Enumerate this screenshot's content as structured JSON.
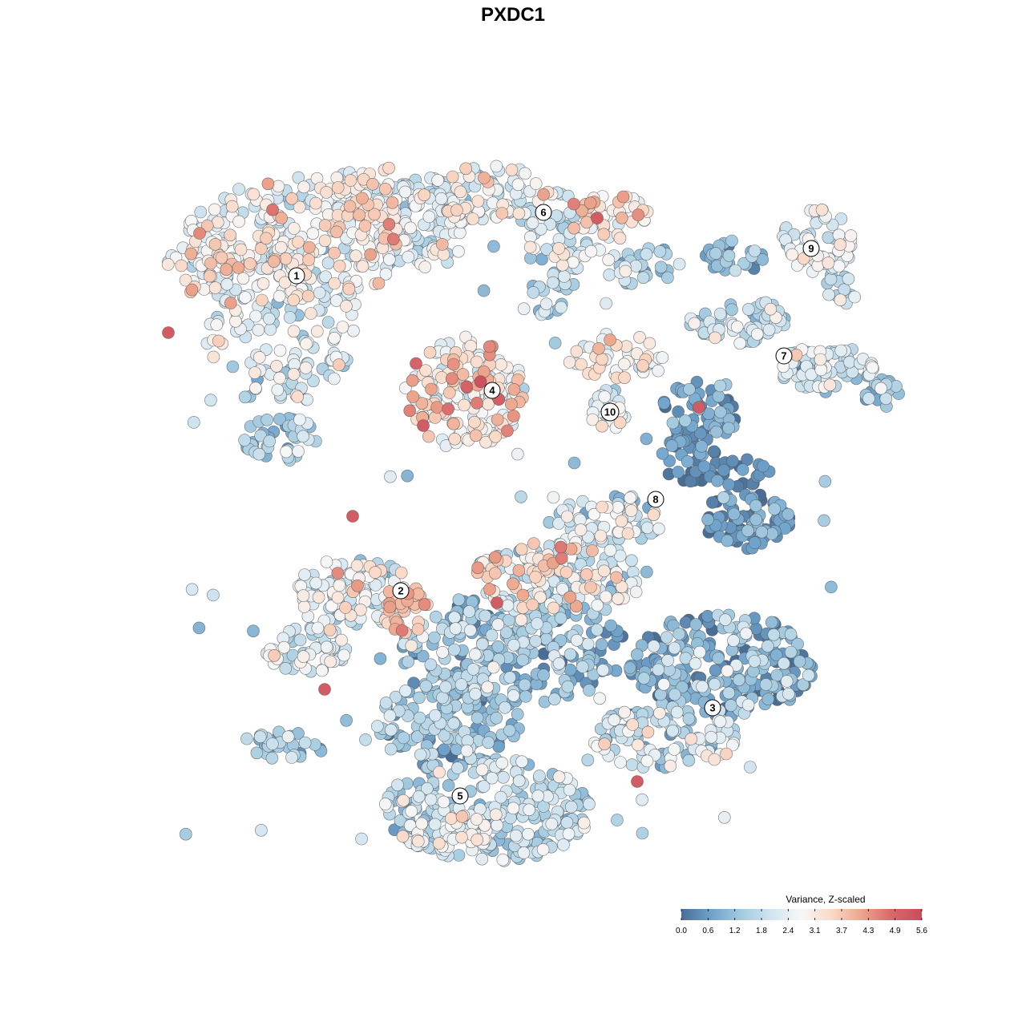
{
  "chart_data": {
    "type": "scatter",
    "title": "PXDC1",
    "xlabel": "",
    "ylabel": "",
    "grid": false,
    "legend_placement": "bottom-right",
    "colorbar": {
      "title": "Variance, Z-scaled",
      "ticks": [
        "0.0",
        "0.6",
        "1.2",
        "1.8",
        "2.4",
        "3.1",
        "3.7",
        "4.3",
        "4.9",
        "5.6"
      ],
      "min": 0.0,
      "max": 5.6,
      "colors": [
        "#4a6d96",
        "#6fa3cc",
        "#a4cbe0",
        "#d2e5f0",
        "#f7f7f7",
        "#fad9c7",
        "#eda58c",
        "#d9686b",
        "#c84d5a"
      ]
    },
    "clusters": [
      {
        "label": "1"
      },
      {
        "label": "2"
      },
      {
        "label": "3"
      },
      {
        "label": "4"
      },
      {
        "label": "5"
      },
      {
        "label": "6"
      },
      {
        "label": "7"
      },
      {
        "label": "8"
      },
      {
        "label": "9"
      },
      {
        "label": "10"
      }
    ]
  }
}
